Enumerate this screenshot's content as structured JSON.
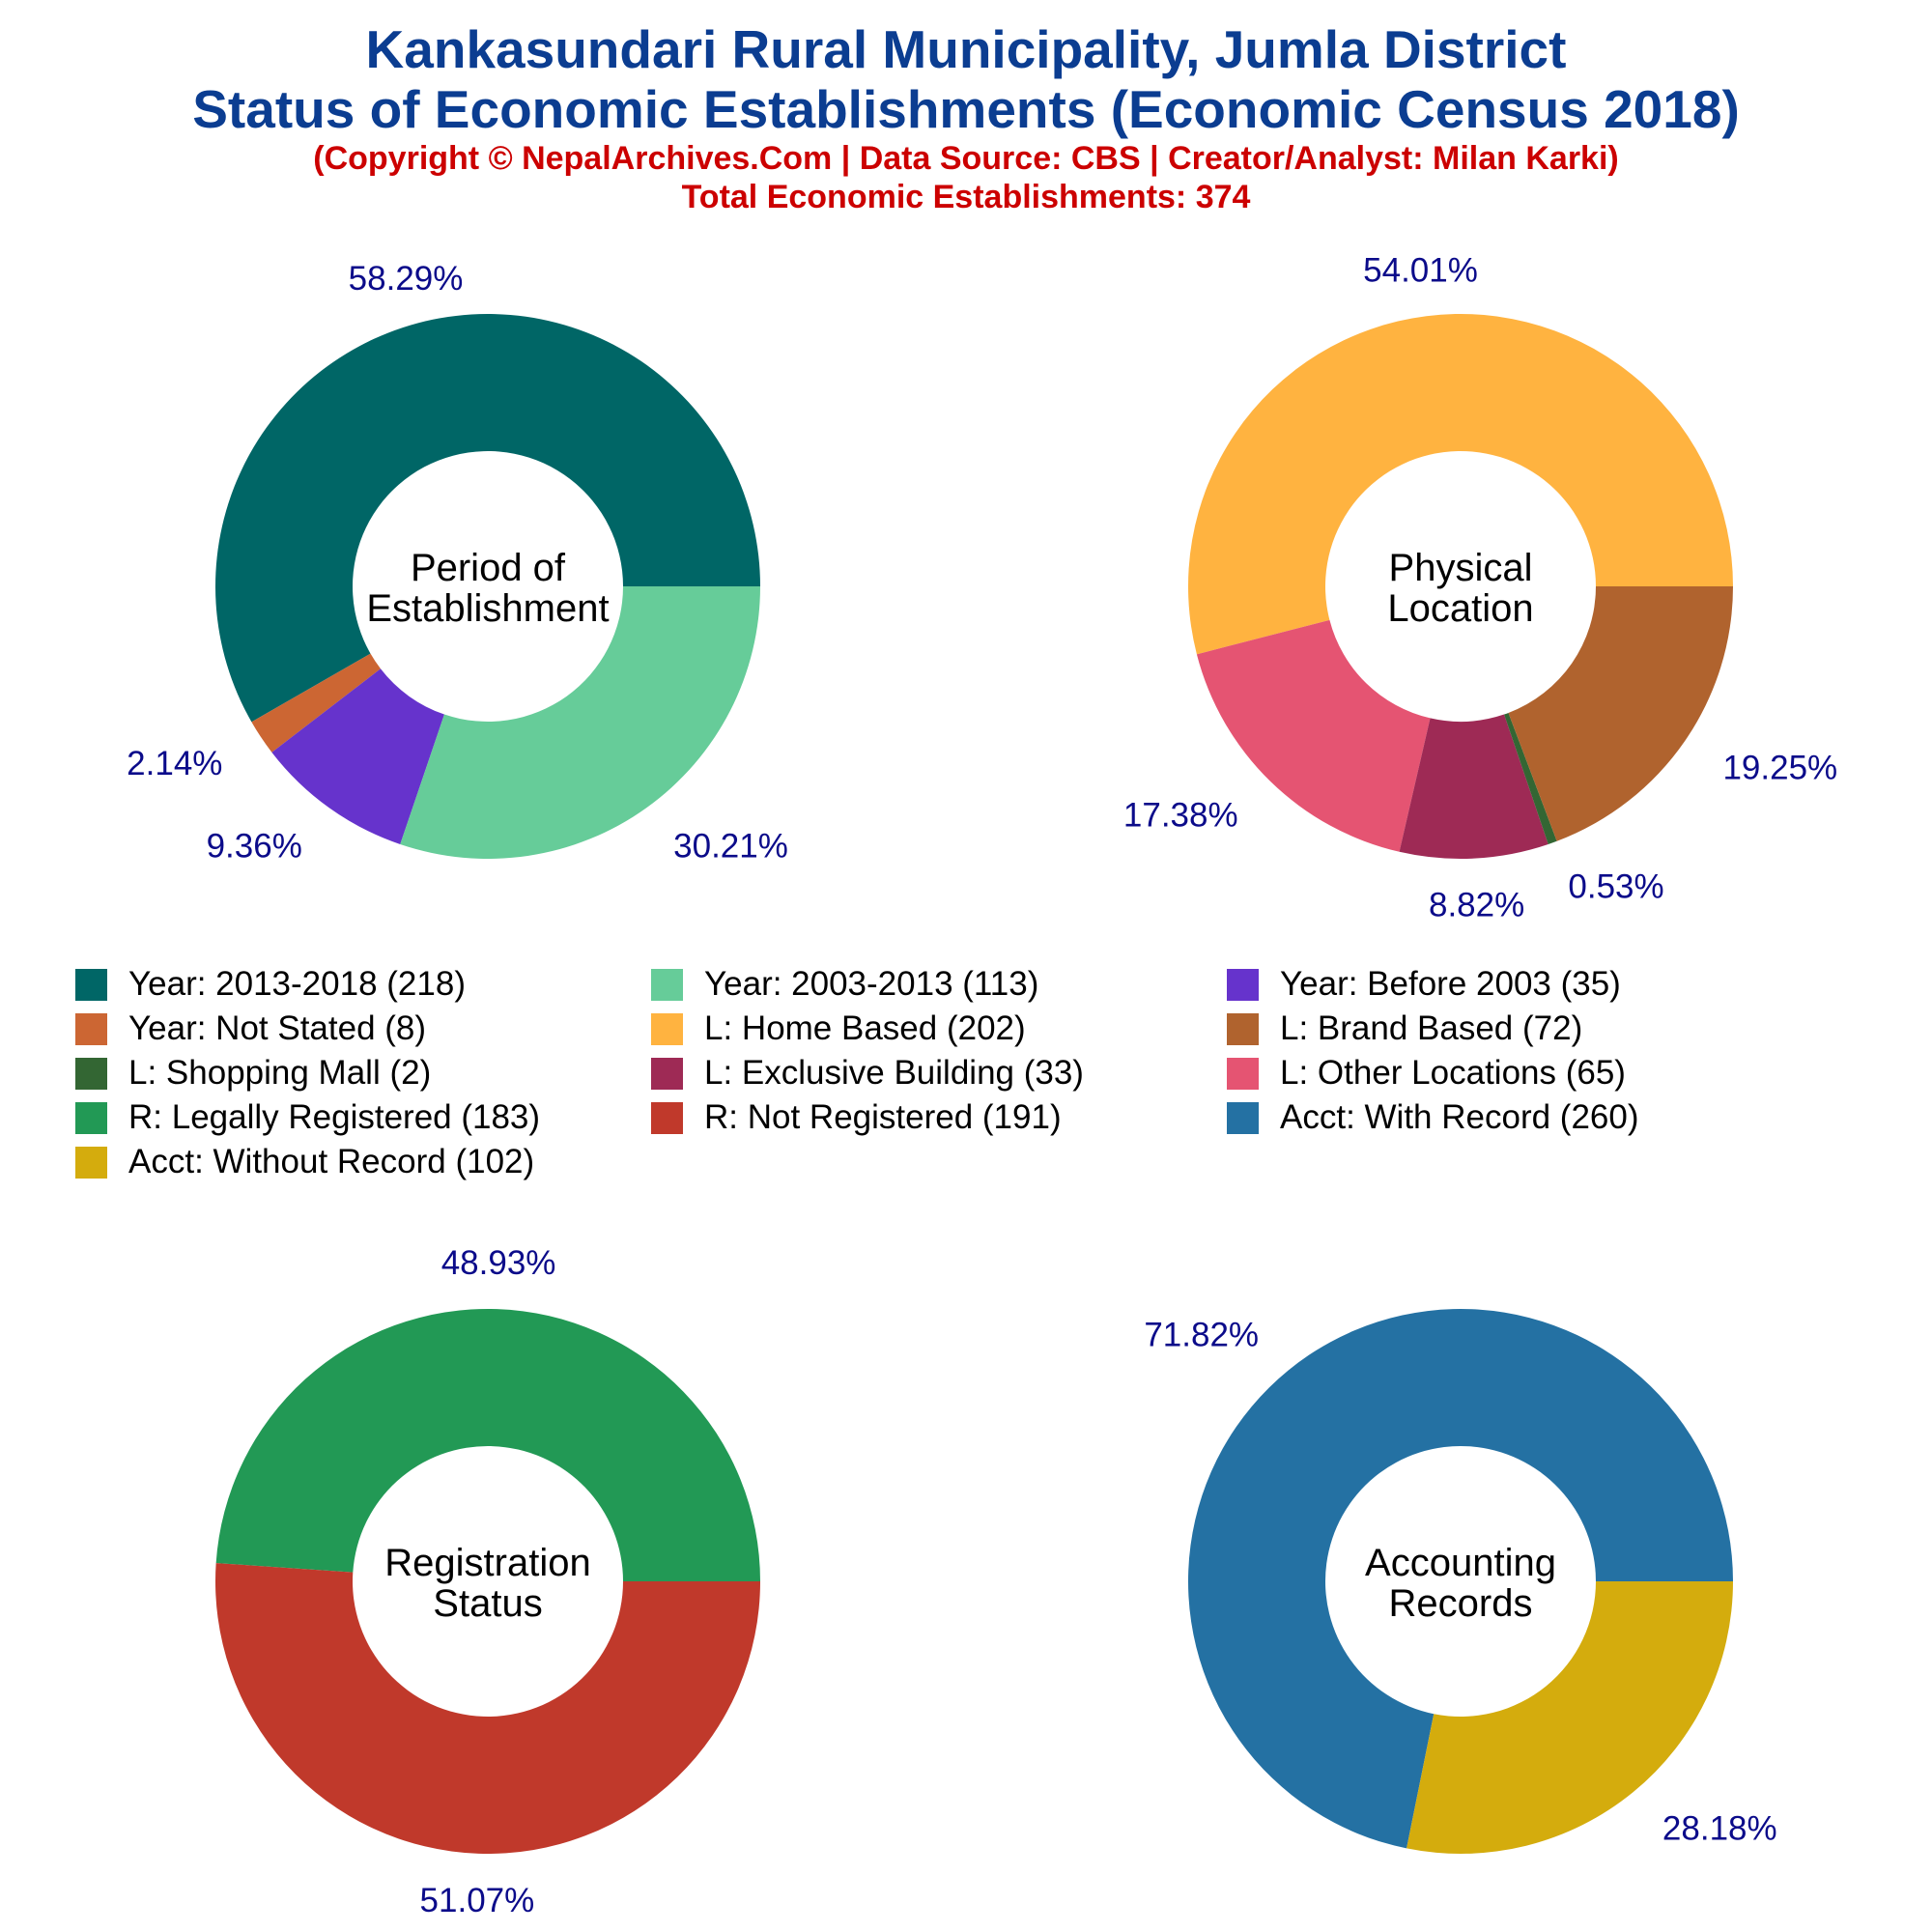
{
  "header": {
    "title_line1": "Kankasundari Rural Municipality, Jumla District",
    "title_line2": "Status of Economic Establishments (Economic Census 2018)",
    "copyright": "(Copyright © NepalArchives.Com | Data Source: CBS | Creator/Analyst: Milan Karki)",
    "total": "Total Economic Establishments: 374"
  },
  "chart_data": [
    {
      "type": "pie",
      "center_label": [
        "Period of",
        "Establishment"
      ],
      "slices": [
        {
          "label": "Year: 2013-2018",
          "value": 218,
          "pct": "58.29%",
          "color": "#006666"
        },
        {
          "label": "Year: Not Stated",
          "value": 8,
          "pct": "2.14%",
          "color": "#cc6633"
        },
        {
          "label": "Year: Before 2003",
          "value": 35,
          "pct": "9.36%",
          "color": "#6633cc"
        },
        {
          "label": "Year: 2003-2013",
          "value": 113,
          "pct": "30.21%",
          "color": "#66cc99"
        }
      ]
    },
    {
      "type": "pie",
      "center_label": [
        "Physical",
        "Location"
      ],
      "slices": [
        {
          "label": "L: Home Based",
          "value": 202,
          "pct": "54.01%",
          "color": "#ffb340"
        },
        {
          "label": "L: Other Locations",
          "value": 65,
          "pct": "17.38%",
          "color": "#e55472"
        },
        {
          "label": "L: Exclusive Building",
          "value": 33,
          "pct": "8.82%",
          "color": "#9e2a55"
        },
        {
          "label": "L: Shopping Mall",
          "value": 2,
          "pct": "0.53%",
          "color": "#336633"
        },
        {
          "label": "L: Brand Based",
          "value": 72,
          "pct": "19.25%",
          "color": "#b0632e"
        }
      ]
    },
    {
      "type": "pie",
      "center_label": [
        "Registration",
        "Status"
      ],
      "slices": [
        {
          "label": "R: Legally Registered",
          "value": 183,
          "pct": "48.93%",
          "color": "#229955"
        },
        {
          "label": "R: Not Registered",
          "value": 191,
          "pct": "51.07%",
          "color": "#c0392b"
        }
      ]
    },
    {
      "type": "pie",
      "center_label": [
        "Accounting",
        "Records"
      ],
      "slices": [
        {
          "label": "Acct: With Record",
          "value": 260,
          "pct": "71.82%",
          "color": "#2471a3"
        },
        {
          "label": "Acct: Without Record",
          "value": 102,
          "pct": "28.18%",
          "color": "#d4ac0d"
        }
      ]
    }
  ],
  "legend": [
    {
      "label": "Year: 2013-2018 (218)",
      "color": "#006666"
    },
    {
      "label": "Year: 2003-2013 (113)",
      "color": "#66cc99"
    },
    {
      "label": "Year: Before 2003 (35)",
      "color": "#6633cc"
    },
    {
      "label": "Year: Not Stated (8)",
      "color": "#cc6633"
    },
    {
      "label": "L: Home Based (202)",
      "color": "#ffb340"
    },
    {
      "label": "L: Brand Based (72)",
      "color": "#b0632e"
    },
    {
      "label": "L: Shopping Mall (2)",
      "color": "#336633"
    },
    {
      "label": "L: Exclusive Building (33)",
      "color": "#9e2a55"
    },
    {
      "label": "L: Other Locations (65)",
      "color": "#e55472"
    },
    {
      "label": "R: Legally Registered (183)",
      "color": "#229955"
    },
    {
      "label": "R: Not Registered (191)",
      "color": "#c0392b"
    },
    {
      "label": "Acct: With Record (260)",
      "color": "#2471a3"
    },
    {
      "label": "Acct: Without Record (102)",
      "color": "#d4ac0d"
    }
  ]
}
